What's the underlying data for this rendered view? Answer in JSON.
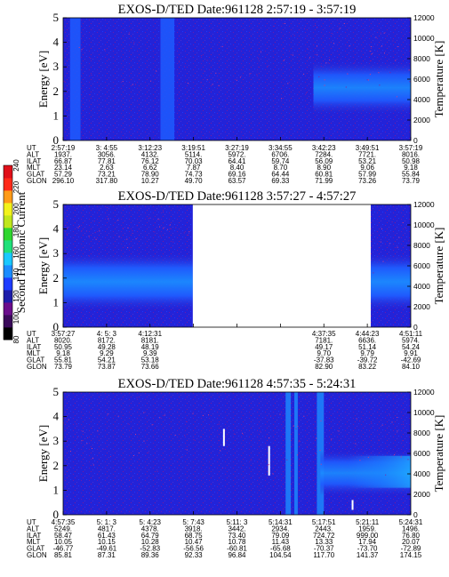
{
  "chart_data": {
    "type": "heatmap",
    "colorbar": {
      "label": "Second Harmonic Current",
      "ticks": [
        "80",
        "100",
        "120",
        "140",
        "160",
        "180",
        "200",
        "220",
        "240"
      ],
      "range": [
        80,
        240
      ],
      "colors": [
        "#000000",
        "#3a0a5a",
        "#6a0d8c",
        "#1d1daa",
        "#1f3dff",
        "#1c8cff",
        "#19c8ff",
        "#1fe07a",
        "#2fd62f",
        "#bfe61c",
        "#f2f21c",
        "#ff9b19",
        "#ff2a1a",
        "#e0101a"
      ]
    },
    "panels": [
      {
        "title": "EXOS-D/TED   Date:961128   2:57:19 - 3:57:19",
        "ylabel": "Energy [eV]",
        "y2label": "Temperature [K]",
        "ylim": [
          0,
          5
        ],
        "yticks": [
          "0",
          "1",
          "2",
          "3",
          "4",
          "5"
        ],
        "y2lim": [
          0,
          12000
        ],
        "y2ticks": [
          "0",
          "2000",
          "4000",
          "6000",
          "8000",
          "10000",
          "12000"
        ],
        "gaps": [],
        "rows": [
          {
            "label": "UT",
            "values": [
              "2:57:19",
              "3: 4:55",
              "3:12:23",
              "3:19:51",
              "3:27:19",
              "3:34:55",
              "3:42:23",
              "3:49:51",
              "3:57:19"
            ]
          },
          {
            "label": "ALT",
            "values": [
              "1937.",
              "3056.",
              "4132.",
              "5114.",
              "5972.",
              "6706.",
              "7284.",
              "7721.",
              "8016."
            ]
          },
          {
            "label": "ILAT",
            "values": [
              "66.87",
              "77.81",
              "76.12",
              "70.03",
              "64.41",
              "59.74",
              "56.09",
              "53.21",
              "50.98"
            ]
          },
          {
            "label": "MLT",
            "values": [
              "23.14",
              "2.63",
              "6.62",
              "7.87",
              "8.40",
              "8.70",
              "8.90",
              "9.06",
              "9.18"
            ]
          },
          {
            "label": "GLAT",
            "values": [
              "57.29",
              "73.21",
              "78.90",
              "74.73",
              "69.16",
              "64.44",
              "60.81",
              "57.99",
              "55.84"
            ]
          },
          {
            "label": "GLON",
            "values": [
              "296.10",
              "317.80",
              "10.27",
              "49.70",
              "63.57",
              "69.33",
              "71.99",
              "73.26",
              "73.79"
            ]
          }
        ]
      },
      {
        "title": "EXOS-D/TED   Date:961128   3:57:27 - 4:57:27",
        "ylabel": "Energy [eV]",
        "y2label": "Temperature [K]",
        "ylim": [
          0,
          5
        ],
        "yticks": [
          "0",
          "1",
          "2",
          "3",
          "4",
          "5"
        ],
        "y2lim": [
          0,
          12000
        ],
        "y2ticks": [
          "0",
          "2000",
          "4000",
          "6000",
          "8000",
          "10000",
          "12000"
        ],
        "gaps": [
          [
            0.373,
            0.885
          ]
        ],
        "rows": [
          {
            "label": "UT",
            "values": [
              "3:57:27",
              "4: 5: 3",
              "4:12:31",
              "",
              "",
              "",
              "4:37:35",
              "4:44:23",
              "4:51:11"
            ]
          },
          {
            "label": "ALT",
            "values": [
              "8020.",
              "8172.",
              "8181.",
              "",
              "",
              "",
              "7181.",
              "6636.",
              "5974."
            ]
          },
          {
            "label": "ILAT",
            "values": [
              "50.95",
              "49.28",
              "48.19",
              "",
              "",
              "",
              "49.17",
              "51.14",
              "54.24"
            ]
          },
          {
            "label": "MLT",
            "values": [
              "9.18",
              "9.29",
              "9.39",
              "",
              "",
              "",
              "9.70",
              "9.79",
              "9.91"
            ]
          },
          {
            "label": "GLAT",
            "values": [
              "55.81",
              "54.21",
              "53.18",
              "",
              "",
              "",
              "-37.83",
              "-39.72",
              "-42.69"
            ]
          },
          {
            "label": "GLON",
            "values": [
              "73.79",
              "73.87",
              "73.66",
              "",
              "",
              "",
              "82.90",
              "83.22",
              "84.10"
            ]
          }
        ]
      },
      {
        "title": "EXOS-D/TED   Date:961128   4:57:35 - 5:24:31",
        "ylabel": "Energy [eV]",
        "y2label": "Temperature [K]",
        "ylim": [
          0,
          5
        ],
        "yticks": [
          "0",
          "1",
          "2",
          "3",
          "4",
          "5"
        ],
        "y2lim": [
          0,
          12000
        ],
        "y2ticks": [
          "0",
          "2000",
          "4000",
          "6000",
          "8000",
          "10000",
          "12000"
        ],
        "gaps": [],
        "rows": [
          {
            "label": "UT",
            "values": [
              "4:57:35",
              "5: 1: 3",
              "5: 4:23",
              "5: 7:43",
              "5:11: 3",
              "5:14:31",
              "5:17:51",
              "5:21:11",
              "5:24:31"
            ]
          },
          {
            "label": "ALT",
            "values": [
              "5249.",
              "4817.",
              "4378.",
              "3918.",
              "3442.",
              "2934.",
              "2443.",
              "1959.",
              "1496."
            ]
          },
          {
            "label": "ILAT",
            "values": [
              "58.47",
              "61.43",
              "64.79",
              "68.75",
              "73.40",
              "79.09",
              "724.72",
              "999.00",
              "76.80"
            ]
          },
          {
            "label": "MLT",
            "values": [
              "10.05",
              "10.15",
              "10.28",
              "10.47",
              "10.78",
              "11.43",
              "13.33",
              "17.94",
              "20.07"
            ]
          },
          {
            "label": "GLAT",
            "values": [
              "-46.77",
              "-49.61",
              "-52.83",
              "-56.56",
              "-60.81",
              "-65.68",
              "-70.37",
              "-73.70",
              "-72.89"
            ]
          },
          {
            "label": "GLON",
            "values": [
              "85.81",
              "87.31",
              "89.36",
              "92.33",
              "96.84",
              "104.54",
              "117.70",
              "141.37",
              "174.15"
            ]
          }
        ]
      }
    ]
  }
}
